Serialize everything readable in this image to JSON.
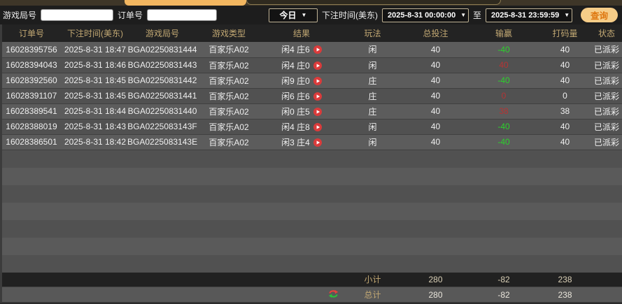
{
  "colors": {
    "accent_orange": "#f2b660",
    "query_button_bg": "#f6cd88",
    "query_button_text": "#de760e",
    "header_text": "#c2a873",
    "win_red": "#b53434",
    "loss_green": "#2bd22b",
    "play_icon_red": "#db3b3b"
  },
  "filters": {
    "game_round_label": "游戏局号",
    "game_round_value": "",
    "order_no_label": "订单号",
    "order_no_value": "",
    "range_preset": "今日",
    "bet_time_label": "下注时间(美东)",
    "start_time": "2025-8-31 00:00:00",
    "to_label": "至",
    "end_time": "2025-8-31 23:59:59",
    "query_button": "查询"
  },
  "table": {
    "columns": [
      "订单号",
      "下注时间(美东)",
      "游戏局号",
      "游戏类型",
      "结果",
      "玩法",
      "总投注",
      "输赢",
      "打码量",
      "状态"
    ],
    "rows": [
      {
        "order_id": "16028395756",
        "bet_time": "2025-8-31 18:47",
        "round_id": "BGA02250831444",
        "game_type": "百家乐A02",
        "result": "闲4 庄6",
        "play": "闲",
        "total_bet": "40",
        "win_loss": "-40",
        "win_loss_color": "green",
        "turnover": "40",
        "status": "已派彩"
      },
      {
        "order_id": "16028394043",
        "bet_time": "2025-8-31 18:46",
        "round_id": "BGA02250831443",
        "game_type": "百家乐A02",
        "result": "闲4 庄0",
        "play": "闲",
        "total_bet": "40",
        "win_loss": "40",
        "win_loss_color": "red",
        "turnover": "40",
        "status": "已派彩"
      },
      {
        "order_id": "16028392560",
        "bet_time": "2025-8-31 18:45",
        "round_id": "BGA02250831442",
        "game_type": "百家乐A02",
        "result": "闲9 庄0",
        "play": "庄",
        "total_bet": "40",
        "win_loss": "-40",
        "win_loss_color": "green",
        "turnover": "40",
        "status": "已派彩"
      },
      {
        "order_id": "16028391107",
        "bet_time": "2025-8-31 18:45",
        "round_id": "BGA02250831441",
        "game_type": "百家乐A02",
        "result": "闲6 庄6",
        "play": "庄",
        "total_bet": "40",
        "win_loss": "0",
        "win_loss_color": "red",
        "turnover": "0",
        "status": "已派彩"
      },
      {
        "order_id": "16028389541",
        "bet_time": "2025-8-31 18:44",
        "round_id": "BGA02250831440",
        "game_type": "百家乐A02",
        "result": "闲0 庄5",
        "play": "庄",
        "total_bet": "40",
        "win_loss": "38",
        "win_loss_color": "red",
        "turnover": "38",
        "status": "已派彩"
      },
      {
        "order_id": "16028388019",
        "bet_time": "2025-8-31 18:43",
        "round_id": "BGA0225083143F",
        "game_type": "百家乐A02",
        "result": "闲4 庄8",
        "play": "闲",
        "total_bet": "40",
        "win_loss": "-40",
        "win_loss_color": "green",
        "turnover": "40",
        "status": "已派彩"
      },
      {
        "order_id": "16028386501",
        "bet_time": "2025-8-31 18:42",
        "round_id": "BGA0225083143E",
        "game_type": "百家乐A02",
        "result": "闲3 庄4",
        "play": "闲",
        "total_bet": "40",
        "win_loss": "-40",
        "win_loss_color": "green",
        "turnover": "40",
        "status": "已派彩"
      }
    ]
  },
  "summary": {
    "subtotal_label": "小计",
    "subtotal_bet": "280",
    "subtotal_winloss": "-82",
    "subtotal_turnover": "238",
    "total_label": "总计",
    "total_bet": "280",
    "total_winloss": "-82",
    "total_turnover": "238"
  }
}
